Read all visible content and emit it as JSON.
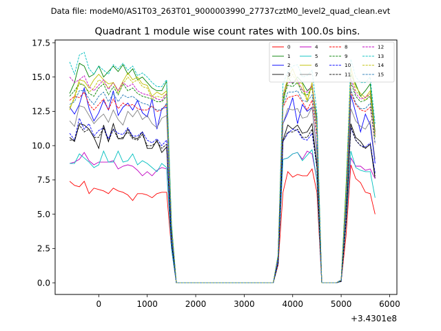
{
  "file_label": "Data file: modeM0/AS1T03_263T01_9000003990_27737cztM0_level2_quad_clean.evt",
  "chart_data": {
    "type": "line",
    "title": "Quadrant 1 module wise count rates with 100.0s bins.",
    "xlabel": "",
    "ylabel": "",
    "x_offset_label": "+3.4301e8",
    "xlim": [
      -900,
      6150
    ],
    "ylim": [
      -0.85,
      17.7
    ],
    "xticks": [
      0,
      1000,
      2000,
      3000,
      4000,
      5000,
      6000
    ],
    "yticks": [
      0.0,
      2.5,
      5.0,
      7.5,
      10.0,
      12.5,
      15.0,
      17.5
    ],
    "ytick_labels": [
      "0.0",
      "2.5",
      "5.0",
      "7.5",
      "10.0",
      "12.5",
      "15.0",
      "17.5"
    ],
    "grid": false,
    "legend_position": "top-right",
    "legend_columns": 4,
    "x": [
      -600,
      -500,
      -400,
      -300,
      -200,
      -100,
      0,
      100,
      200,
      300,
      400,
      500,
      600,
      700,
      800,
      900,
      1000,
      1100,
      1200,
      1300,
      1400,
      1500,
      1600,
      1700,
      1800,
      1900,
      2000,
      2100,
      2200,
      2300,
      2400,
      2500,
      2600,
      2700,
      2800,
      2900,
      3000,
      3100,
      3200,
      3300,
      3400,
      3500,
      3600,
      3700,
      3800,
      3900,
      4000,
      4100,
      4200,
      4300,
      4400,
      4500,
      4600,
      4700,
      4800,
      4900,
      5000,
      5100,
      5200,
      5300,
      5400,
      5500,
      5600,
      5700
    ],
    "series": [
      {
        "name": "0",
        "color": "#ff0000",
        "dash": "solid",
        "values": [
          7.4,
          7.1,
          7.0,
          7.4,
          6.5,
          6.9,
          6.8,
          6.7,
          6.5,
          6.9,
          6.7,
          6.6,
          6.4,
          6.0,
          6.5,
          6.5,
          6.4,
          6.2,
          6.5,
          6.6,
          6.6,
          2.5,
          0.0,
          0.0,
          0.0,
          0.0,
          0.0,
          0.0,
          0.0,
          0.0,
          0.0,
          0.0,
          0.0,
          0.0,
          0.0,
          0.0,
          0.0,
          0.0,
          0.0,
          0.0,
          0.0,
          0.0,
          0.0,
          1.3,
          6.6,
          8.1,
          7.7,
          7.9,
          7.8,
          7.8,
          8.3,
          6.6,
          0.0,
          0.0,
          0.0,
          0.0,
          0.1,
          3.4,
          8.6,
          7.6,
          7.3,
          6.6,
          6.5,
          5.0
        ]
      },
      {
        "name": "1",
        "color": "#008000",
        "dash": "solid",
        "values": [
          13.8,
          14.6,
          16.0,
          15.8,
          15.0,
          15.2,
          15.8,
          15.0,
          15.4,
          15.8,
          15.4,
          15.9,
          15.2,
          15.6,
          14.8,
          15.0,
          14.6,
          14.2,
          14.0,
          14.0,
          14.7,
          4.3,
          0.0,
          0.0,
          0.0,
          0.0,
          0.0,
          0.0,
          0.0,
          0.0,
          0.0,
          0.0,
          0.0,
          0.0,
          0.0,
          0.0,
          0.0,
          0.0,
          0.0,
          0.0,
          0.0,
          0.0,
          0.0,
          2.0,
          13.0,
          15.0,
          14.5,
          15.0,
          14.6,
          14.0,
          14.3,
          12.0,
          0.0,
          0.0,
          0.0,
          0.0,
          0.2,
          7.0,
          15.2,
          14.5,
          13.6,
          14.0,
          14.5,
          11.0
        ]
      },
      {
        "name": "2",
        "color": "#0000ff",
        "dash": "solid",
        "values": [
          12.8,
          12.3,
          13.0,
          14.2,
          12.7,
          11.8,
          12.4,
          13.3,
          12.6,
          14.0,
          12.2,
          12.8,
          13.1,
          12.6,
          13.3,
          12.4,
          12.1,
          13.4,
          11.2,
          12.7,
          12.8,
          3.9,
          0.0,
          0.0,
          0.0,
          0.0,
          0.0,
          0.0,
          0.0,
          0.0,
          0.0,
          0.0,
          0.0,
          0.0,
          0.0,
          0.0,
          0.0,
          0.0,
          0.0,
          0.0,
          0.0,
          0.0,
          0.0,
          1.7,
          11.6,
          12.4,
          13.5,
          11.6,
          13.0,
          12.5,
          12.8,
          9.6,
          0.0,
          0.0,
          0.0,
          0.0,
          0.2,
          5.3,
          13.7,
          12.4,
          11.0,
          12.3,
          11.5,
          8.7
        ]
      },
      {
        "name": "3",
        "color": "#000000",
        "dash": "solid",
        "values": [
          10.6,
          10.3,
          11.6,
          11.5,
          11.2,
          10.6,
          9.8,
          11.5,
          10.3,
          11.6,
          10.5,
          10.5,
          11.2,
          10.6,
          10.5,
          11.0,
          9.8,
          9.8,
          10.4,
          9.5,
          9.9,
          3.0,
          0.0,
          0.0,
          0.0,
          0.0,
          0.0,
          0.0,
          0.0,
          0.0,
          0.0,
          0.0,
          0.0,
          0.0,
          0.0,
          0.0,
          0.0,
          0.0,
          0.0,
          0.0,
          0.0,
          0.0,
          0.0,
          1.5,
          10.4,
          11.5,
          11.2,
          11.5,
          10.9,
          11.0,
          11.6,
          8.6,
          0.0,
          0.0,
          0.0,
          0.0,
          0.1,
          4.4,
          11.6,
          10.6,
          10.3,
          9.8,
          10.1,
          7.6
        ]
      },
      {
        "name": "4",
        "color": "#c000c0",
        "dash": "solid",
        "values": [
          8.7,
          8.8,
          9.0,
          9.5,
          8.9,
          8.6,
          8.8,
          8.8,
          8.8,
          8.9,
          8.3,
          8.5,
          8.6,
          8.5,
          8.2,
          7.8,
          8.1,
          7.8,
          8.2,
          8.4,
          8.3,
          2.5,
          0.0,
          0.0,
          0.0,
          0.0,
          0.0,
          0.0,
          0.0,
          0.0,
          0.0,
          0.0,
          0.0,
          0.0,
          0.0,
          0.0,
          0.0,
          0.0,
          0.0,
          0.0,
          0.0,
          0.0,
          0.0,
          1.5,
          9.0,
          9.1,
          9.4,
          9.5,
          9.0,
          9.6,
          9.4,
          7.5,
          0.0,
          0.0,
          0.0,
          0.0,
          0.1,
          4.3,
          9.1,
          8.5,
          8.5,
          8.2,
          8.3,
          7.6
        ]
      },
      {
        "name": "5",
        "color": "#00bfbf",
        "dash": "solid",
        "values": [
          8.7,
          8.7,
          9.4,
          9.1,
          8.8,
          8.4,
          8.6,
          9.6,
          8.8,
          8.8,
          9.6,
          8.8,
          8.9,
          9.4,
          8.6,
          8.9,
          8.7,
          8.4,
          8.1,
          8.7,
          8.4,
          2.5,
          0.0,
          0.0,
          0.0,
          0.0,
          0.0,
          0.0,
          0.0,
          0.0,
          0.0,
          0.0,
          0.0,
          0.0,
          0.0,
          0.0,
          0.0,
          0.0,
          0.0,
          0.0,
          0.0,
          0.0,
          0.0,
          1.4,
          9.0,
          9.1,
          9.4,
          9.5,
          8.9,
          9.3,
          9.7,
          7.5,
          0.0,
          0.0,
          0.0,
          0.0,
          0.1,
          4.2,
          9.6,
          8.4,
          8.2,
          8.1,
          8.1,
          6.2
        ]
      },
      {
        "name": "6",
        "color": "#bfbf00",
        "dash": "solid",
        "values": [
          12.6,
          13.6,
          14.8,
          14.7,
          14.2,
          14.8,
          15.2,
          14.8,
          14.5,
          14.6,
          14.0,
          14.7,
          15.3,
          14.8,
          15.0,
          14.5,
          14.4,
          13.6,
          13.9,
          13.7,
          14.0,
          4.2,
          0.0,
          0.0,
          0.0,
          0.0,
          0.0,
          0.0,
          0.0,
          0.0,
          0.0,
          0.0,
          0.0,
          0.0,
          0.0,
          0.0,
          0.0,
          0.0,
          0.0,
          0.0,
          0.0,
          0.0,
          0.0,
          2.0,
          13.7,
          14.9,
          15.6,
          14.7,
          14.5,
          13.3,
          14.6,
          11.5,
          0.0,
          0.0,
          0.0,
          0.0,
          0.2,
          6.6,
          15.7,
          14.3,
          13.8,
          13.5,
          14.0,
          10.8
        ]
      },
      {
        "name": "7",
        "color": "#808080",
        "dash": "solid",
        "values": [
          11.8,
          11.4,
          12.9,
          12.8,
          12.2,
          11.6,
          12.0,
          12.3,
          11.7,
          12.6,
          11.9,
          11.5,
          12.5,
          12.1,
          12.6,
          11.9,
          12.2,
          11.6,
          11.3,
          12.0,
          12.2,
          3.6,
          0.0,
          0.0,
          0.0,
          0.0,
          0.0,
          0.0,
          0.0,
          0.0,
          0.0,
          0.0,
          0.0,
          0.0,
          0.0,
          0.0,
          0.0,
          0.0,
          0.0,
          0.0,
          0.0,
          0.0,
          0.0,
          1.6,
          11.6,
          12.7,
          12.6,
          12.7,
          12.0,
          12.1,
          12.8,
          9.4,
          0.0,
          0.0,
          0.0,
          0.0,
          0.2,
          5.2,
          12.7,
          11.8,
          11.4,
          11.2,
          11.8,
          9.0
        ]
      },
      {
        "name": "8",
        "color": "#ff0000",
        "dash": "dashed",
        "values": [
          13.3,
          13.6,
          13.5,
          13.9,
          13.0,
          12.6,
          13.0,
          13.4,
          12.6,
          13.4,
          12.7,
          13.1,
          12.9,
          13.0,
          12.7,
          12.6,
          12.6,
          12.9,
          12.5,
          12.6,
          13.0,
          3.9,
          0.0,
          0.0,
          0.0,
          0.0,
          0.0,
          0.0,
          0.0,
          0.0,
          0.0,
          0.0,
          0.0,
          0.0,
          0.0,
          0.0,
          0.0,
          0.0,
          0.0,
          0.0,
          0.0,
          0.0,
          0.0,
          1.9,
          12.8,
          13.5,
          13.6,
          13.7,
          13.2,
          12.6,
          13.3,
          10.6,
          0.0,
          0.0,
          0.0,
          0.0,
          0.2,
          5.7,
          13.9,
          13.0,
          12.6,
          12.5,
          12.8,
          10.1
        ]
      },
      {
        "name": "9",
        "color": "#008000",
        "dash": "dashed",
        "values": [
          13.6,
          14.0,
          14.5,
          14.4,
          13.8,
          13.6,
          14.2,
          14.5,
          13.7,
          14.3,
          13.7,
          14.5,
          14.0,
          14.2,
          13.8,
          13.6,
          13.5,
          13.4,
          13.2,
          13.2,
          13.6,
          4.0,
          0.0,
          0.0,
          0.0,
          0.0,
          0.0,
          0.0,
          0.0,
          0.0,
          0.0,
          0.0,
          0.0,
          0.0,
          0.0,
          0.0,
          0.0,
          0.0,
          0.0,
          0.0,
          0.0,
          0.0,
          0.0,
          2.0,
          13.4,
          14.4,
          14.3,
          14.6,
          13.8,
          13.7,
          14.2,
          11.4,
          0.0,
          0.0,
          0.0,
          0.0,
          0.2,
          6.0,
          14.6,
          13.6,
          13.2,
          13.3,
          13.6,
          10.6
        ]
      },
      {
        "name": "10",
        "color": "#0000ff",
        "dash": "dashed",
        "values": [
          10.9,
          10.4,
          12.0,
          11.2,
          11.6,
          10.7,
          11.1,
          11.3,
          10.5,
          11.2,
          10.9,
          10.8,
          11.3,
          10.7,
          10.7,
          11.0,
          10.4,
          10.2,
          10.5,
          10.0,
          10.4,
          3.1,
          0.0,
          0.0,
          0.0,
          0.0,
          0.0,
          0.0,
          0.0,
          0.0,
          0.0,
          0.0,
          0.0,
          0.0,
          0.0,
          0.0,
          0.0,
          0.0,
          0.0,
          0.0,
          0.0,
          0.0,
          0.0,
          1.5,
          10.3,
          10.9,
          11.2,
          11.1,
          10.5,
          10.4,
          10.9,
          8.4,
          0.0,
          0.0,
          0.0,
          0.0,
          0.1,
          4.6,
          11.3,
          10.4,
          10.0,
          9.9,
          10.2,
          8.0
        ]
      },
      {
        "name": "11",
        "color": "#000000",
        "dash": "dashed",
        "values": [
          10.4,
          10.4,
          11.5,
          11.0,
          11.2,
          10.6,
          10.6,
          11.3,
          10.3,
          11.2,
          10.5,
          10.6,
          11.0,
          10.5,
          10.4,
          10.8,
          10.0,
          10.0,
          10.3,
          9.8,
          10.1,
          3.0,
          0.0,
          0.0,
          0.0,
          0.0,
          0.0,
          0.0,
          0.0,
          0.0,
          0.0,
          0.0,
          0.0,
          0.0,
          0.0,
          0.0,
          0.0,
          0.0,
          0.0,
          0.0,
          0.0,
          0.0,
          0.0,
          1.4,
          10.3,
          11.0,
          11.0,
          11.2,
          10.6,
          10.6,
          11.2,
          8.4,
          0.0,
          0.0,
          0.0,
          0.0,
          0.1,
          4.4,
          11.4,
          10.4,
          10.0,
          9.8,
          10.1,
          7.8
        ]
      },
      {
        "name": "12",
        "color": "#c000c0",
        "dash": "dashed",
        "values": [
          15.0,
          14.6,
          14.8,
          15.1,
          14.3,
          14.0,
          14.4,
          14.8,
          14.1,
          14.6,
          14.0,
          14.6,
          14.3,
          14.5,
          14.0,
          13.8,
          13.7,
          13.6,
          13.4,
          13.3,
          13.8,
          4.1,
          0.0,
          0.0,
          0.0,
          0.0,
          0.0,
          0.0,
          0.0,
          0.0,
          0.0,
          0.0,
          0.0,
          0.0,
          0.0,
          0.0,
          0.0,
          0.0,
          0.0,
          0.0,
          0.0,
          0.0,
          0.0,
          2.0,
          13.6,
          14.6,
          14.6,
          14.8,
          14.0,
          13.9,
          14.4,
          11.6,
          0.0,
          0.0,
          0.0,
          0.0,
          0.2,
          6.2,
          14.9,
          13.8,
          13.4,
          13.5,
          13.8,
          10.8
        ]
      },
      {
        "name": "13",
        "color": "#00bfbf",
        "dash": "dashed",
        "values": [
          16.1,
          15.2,
          16.6,
          16.8,
          15.6,
          15.2,
          15.8,
          15.5,
          15.2,
          15.9,
          15.6,
          16.0,
          15.5,
          15.8,
          15.1,
          15.3,
          15.0,
          14.6,
          14.3,
          14.3,
          14.8,
          4.4,
          0.0,
          0.0,
          0.0,
          0.0,
          0.0,
          0.0,
          0.0,
          0.0,
          0.0,
          0.0,
          0.0,
          0.0,
          0.0,
          0.0,
          0.0,
          0.0,
          0.0,
          0.0,
          0.0,
          0.0,
          0.0,
          2.1,
          14.5,
          15.4,
          15.8,
          15.9,
          15.0,
          15.1,
          15.5,
          12.4,
          0.0,
          0.0,
          0.0,
          0.0,
          0.2,
          6.6,
          16.3,
          15.0,
          14.6,
          14.6,
          15.0,
          11.6
        ]
      },
      {
        "name": "14",
        "color": "#bfbf00",
        "dash": "dashed",
        "values": [
          12.8,
          13.4,
          14.6,
          14.4,
          13.9,
          14.2,
          14.8,
          14.6,
          14.2,
          14.6,
          13.8,
          14.5,
          15.0,
          14.6,
          14.8,
          14.3,
          14.2,
          13.4,
          13.6,
          13.5,
          13.8,
          4.1,
          0.0,
          0.0,
          0.0,
          0.0,
          0.0,
          0.0,
          0.0,
          0.0,
          0.0,
          0.0,
          0.0,
          0.0,
          0.0,
          0.0,
          0.0,
          0.0,
          0.0,
          0.0,
          0.0,
          0.0,
          0.0,
          2.0,
          13.5,
          14.6,
          15.2,
          14.5,
          14.2,
          13.2,
          14.4,
          11.3,
          0.0,
          0.0,
          0.0,
          0.0,
          0.2,
          6.4,
          15.4,
          14.0,
          13.6,
          13.3,
          13.8,
          10.6
        ]
      },
      {
        "name": "15",
        "color": "#1f77b4",
        "dash": "dashed",
        "values": [
          13.0,
          13.2,
          14.0,
          14.0,
          13.4,
          13.0,
          13.6,
          13.9,
          13.2,
          13.8,
          13.2,
          13.7,
          13.5,
          13.6,
          13.3,
          13.1,
          13.0,
          12.8,
          12.6,
          12.6,
          13.1,
          3.9,
          0.0,
          0.0,
          0.0,
          0.0,
          0.0,
          0.0,
          0.0,
          0.0,
          0.0,
          0.0,
          0.0,
          0.0,
          0.0,
          0.0,
          0.0,
          0.0,
          0.0,
          0.0,
          0.0,
          0.0,
          0.0,
          1.9,
          12.9,
          13.9,
          13.9,
          14.0,
          13.3,
          13.2,
          13.7,
          10.9,
          0.0,
          0.0,
          0.0,
          0.0,
          0.2,
          5.8,
          14.1,
          13.1,
          12.7,
          12.7,
          13.1,
          10.2
        ]
      }
    ]
  }
}
